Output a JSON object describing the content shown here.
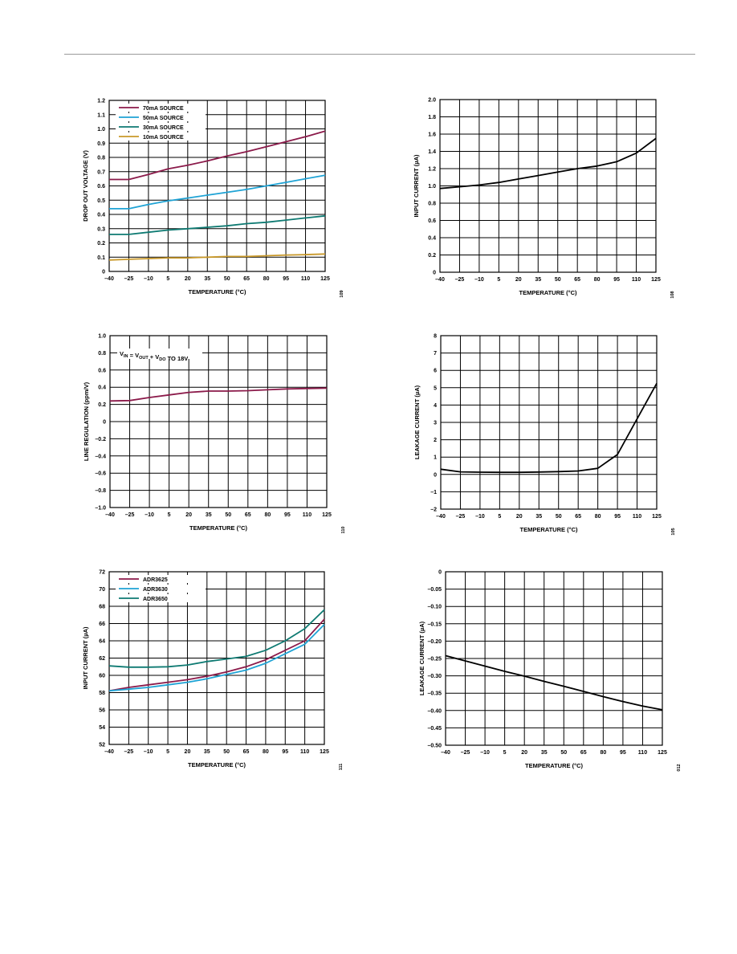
{
  "colors": {
    "maroon": "#8b1a4a",
    "cyan": "#1fa3d5",
    "teal": "#0e7a72",
    "gold": "#c9992a",
    "black": "#000000"
  },
  "chart_data": [
    {
      "type": "line",
      "xlabel": "TEMPERATURE (°C)",
      "ylabel": "DROP OUT VOLTAGE (V)",
      "x_ticks": [
        "–40",
        "–25",
        "–10",
        "5",
        "20",
        "35",
        "50",
        "65",
        "80",
        "95",
        "110",
        "125"
      ],
      "y_ticks": [
        "0",
        "0.1",
        "0.2",
        "0.3",
        "0.4",
        "0.5",
        "0.6",
        "0.7",
        "0.8",
        "0.9",
        "1.0",
        "1.1",
        "1.2"
      ],
      "xlim": [
        -40,
        125
      ],
      "ylim": [
        0,
        1.2
      ],
      "fig_id": "109",
      "legend": "top-left",
      "series": [
        {
          "name": "70mA SOURCE",
          "color": "#8b1a4a",
          "x": [
            -40,
            -25,
            -10,
            5,
            20,
            35,
            50,
            65,
            80,
            95,
            110,
            125
          ],
          "y": [
            0.645,
            0.645,
            0.68,
            0.72,
            0.745,
            0.775,
            0.81,
            0.84,
            0.875,
            0.91,
            0.945,
            0.985
          ]
        },
        {
          "name": "50mA SOURCE",
          "color": "#1fa3d5",
          "x": [
            -40,
            -25,
            -10,
            5,
            20,
            35,
            50,
            65,
            80,
            95,
            110,
            125
          ],
          "y": [
            0.44,
            0.44,
            0.47,
            0.495,
            0.515,
            0.535,
            0.555,
            0.575,
            0.6,
            0.625,
            0.65,
            0.675
          ]
        },
        {
          "name": "30mA SOURCE",
          "color": "#0e7a72",
          "x": [
            -40,
            -25,
            -10,
            5,
            20,
            35,
            50,
            65,
            80,
            95,
            110,
            125
          ],
          "y": [
            0.26,
            0.26,
            0.275,
            0.29,
            0.3,
            0.31,
            0.32,
            0.335,
            0.345,
            0.36,
            0.375,
            0.39
          ]
        },
        {
          "name": "10mA SOURCE",
          "color": "#c9992a",
          "x": [
            -40,
            -25,
            -10,
            5,
            20,
            35,
            50,
            65,
            80,
            95,
            110,
            125
          ],
          "y": [
            0.08,
            0.085,
            0.09,
            0.095,
            0.095,
            0.1,
            0.105,
            0.105,
            0.11,
            0.115,
            0.118,
            0.122
          ]
        }
      ]
    },
    {
      "type": "line",
      "xlabel": "TEMPERATURE (°C)",
      "ylabel": "INPUT CURRENT (µA)",
      "x_ticks": [
        "–40",
        "–25",
        "–10",
        "5",
        "20",
        "35",
        "50",
        "65",
        "80",
        "95",
        "110",
        "125"
      ],
      "y_ticks": [
        "0",
        "0.2",
        "0.4",
        "0.6",
        "0.8",
        "1.0",
        "1.2",
        "1.4",
        "1.6",
        "1.8",
        "2.0"
      ],
      "xlim": [
        -40,
        125
      ],
      "ylim": [
        0,
        2.0
      ],
      "fig_id": "108",
      "series": [
        {
          "color": "#000000",
          "x": [
            -40,
            -25,
            -10,
            5,
            20,
            35,
            50,
            65,
            80,
            95,
            110,
            125
          ],
          "y": [
            0.97,
            0.99,
            1.01,
            1.04,
            1.08,
            1.12,
            1.16,
            1.2,
            1.23,
            1.28,
            1.38,
            1.55
          ]
        }
      ]
    },
    {
      "type": "line",
      "xlabel": "TEMPERATURE (°C)",
      "ylabel": "LINE REGULATION (ppm/V)",
      "annotation": {
        "pre": "V",
        "sub1": "IN",
        "mid": " = V",
        "sub2": "OUT",
        "mid2": " + V",
        "sub3": "DO",
        "post": " TO 18V"
      },
      "x_ticks": [
        "–40",
        "–25",
        "–10",
        "5",
        "20",
        "35",
        "50",
        "65",
        "80",
        "95",
        "110",
        "125"
      ],
      "y_ticks": [
        "–1.0",
        "–0.8",
        "–0.6",
        "–0.4",
        "–0.2",
        "0",
        "0.2",
        "0.4",
        "0.6",
        "0.8",
        "1.0"
      ],
      "xlim": [
        -40,
        125
      ],
      "ylim": [
        -1.0,
        1.0
      ],
      "fig_id": "110",
      "series": [
        {
          "color": "#8b1a4a",
          "x": [
            -40,
            -25,
            -10,
            5,
            20,
            35,
            50,
            65,
            80,
            95,
            110,
            125
          ],
          "y": [
            0.24,
            0.245,
            0.28,
            0.31,
            0.34,
            0.355,
            0.355,
            0.36,
            0.37,
            0.38,
            0.385,
            0.39
          ]
        }
      ]
    },
    {
      "type": "line",
      "xlabel": "TEMPERATURE (°C)",
      "ylabel": "LEAKAGE CURRENT (µA)",
      "x_ticks": [
        "–40",
        "–25",
        "–10",
        "5",
        "20",
        "35",
        "50",
        "65",
        "80",
        "95",
        "110",
        "125"
      ],
      "y_ticks": [
        "–2",
        "–1",
        "0",
        "1",
        "2",
        "3",
        "4",
        "5",
        "6",
        "7",
        "8"
      ],
      "xlim": [
        -40,
        125
      ],
      "ylim": [
        -2,
        8
      ],
      "fig_id": "105",
      "series": [
        {
          "color": "#000000",
          "x": [
            -40,
            -25,
            -10,
            5,
            20,
            35,
            50,
            65,
            80,
            95,
            110,
            125
          ],
          "y": [
            0.3,
            0.15,
            0.13,
            0.12,
            0.12,
            0.14,
            0.16,
            0.2,
            0.35,
            1.15,
            3.2,
            5.25
          ]
        }
      ]
    },
    {
      "type": "line",
      "xlabel": "TEMPERATURE (°C)",
      "ylabel": "INPUT CURRENT (µA)",
      "x_ticks": [
        "–40",
        "–25",
        "–10",
        "5",
        "20",
        "35",
        "50",
        "65",
        "80",
        "95",
        "110",
        "125"
      ],
      "y_ticks": [
        "52",
        "54",
        "56",
        "58",
        "60",
        "62",
        "64",
        "66",
        "68",
        "70",
        "72"
      ],
      "xlim": [
        -40,
        125
      ],
      "ylim": [
        52,
        72
      ],
      "fig_id": "111",
      "legend": "top-left",
      "series": [
        {
          "name": "ADR3625",
          "color": "#8b1a4a",
          "x": [
            -40,
            -25,
            -10,
            5,
            20,
            35,
            50,
            65,
            80,
            95,
            110,
            125
          ],
          "y": [
            58.2,
            58.6,
            58.9,
            59.2,
            59.5,
            59.9,
            60.4,
            61.0,
            61.8,
            62.9,
            64.0,
            66.5
          ]
        },
        {
          "name": "ADR3630",
          "color": "#1fa3d5",
          "x": [
            -40,
            -25,
            -10,
            5,
            20,
            35,
            50,
            65,
            80,
            95,
            110,
            125
          ],
          "y": [
            58.2,
            58.4,
            58.6,
            58.9,
            59.2,
            59.6,
            60.1,
            60.6,
            61.4,
            62.5,
            63.6,
            65.9
          ]
        },
        {
          "name": "ADR3650",
          "color": "#0e7a72",
          "x": [
            -40,
            -25,
            -10,
            5,
            20,
            35,
            50,
            65,
            80,
            95,
            110,
            125
          ],
          "y": [
            61.1,
            60.95,
            60.95,
            61.0,
            61.2,
            61.6,
            61.9,
            62.2,
            62.9,
            64.0,
            65.4,
            67.6
          ]
        }
      ]
    },
    {
      "type": "line",
      "xlabel": "TEMPERATURE (°C)",
      "ylabel": "LEAKAGE CURRENT (µA)",
      "x_ticks": [
        "–40",
        "–25",
        "–10",
        "5",
        "20",
        "35",
        "50",
        "65",
        "80",
        "95",
        "110",
        "125"
      ],
      "y_ticks": [
        "–0.50",
        "–0.45",
        "–0.40",
        "–0.35",
        "–0.30",
        "–0.25",
        "–0.20",
        "–0.15",
        "–0.10",
        "–0.05",
        "0"
      ],
      "xlim": [
        -40,
        125
      ],
      "ylim": [
        -0.5,
        0
      ],
      "fig_id": "012",
      "series": [
        {
          "color": "#000000",
          "x": [
            -40,
            -25,
            -10,
            5,
            20,
            35,
            50,
            65,
            80,
            95,
            110,
            125
          ],
          "y": [
            -0.242,
            -0.257,
            -0.272,
            -0.287,
            -0.301,
            -0.316,
            -0.33,
            -0.345,
            -0.36,
            -0.374,
            -0.387,
            -0.398
          ]
        }
      ]
    }
  ]
}
